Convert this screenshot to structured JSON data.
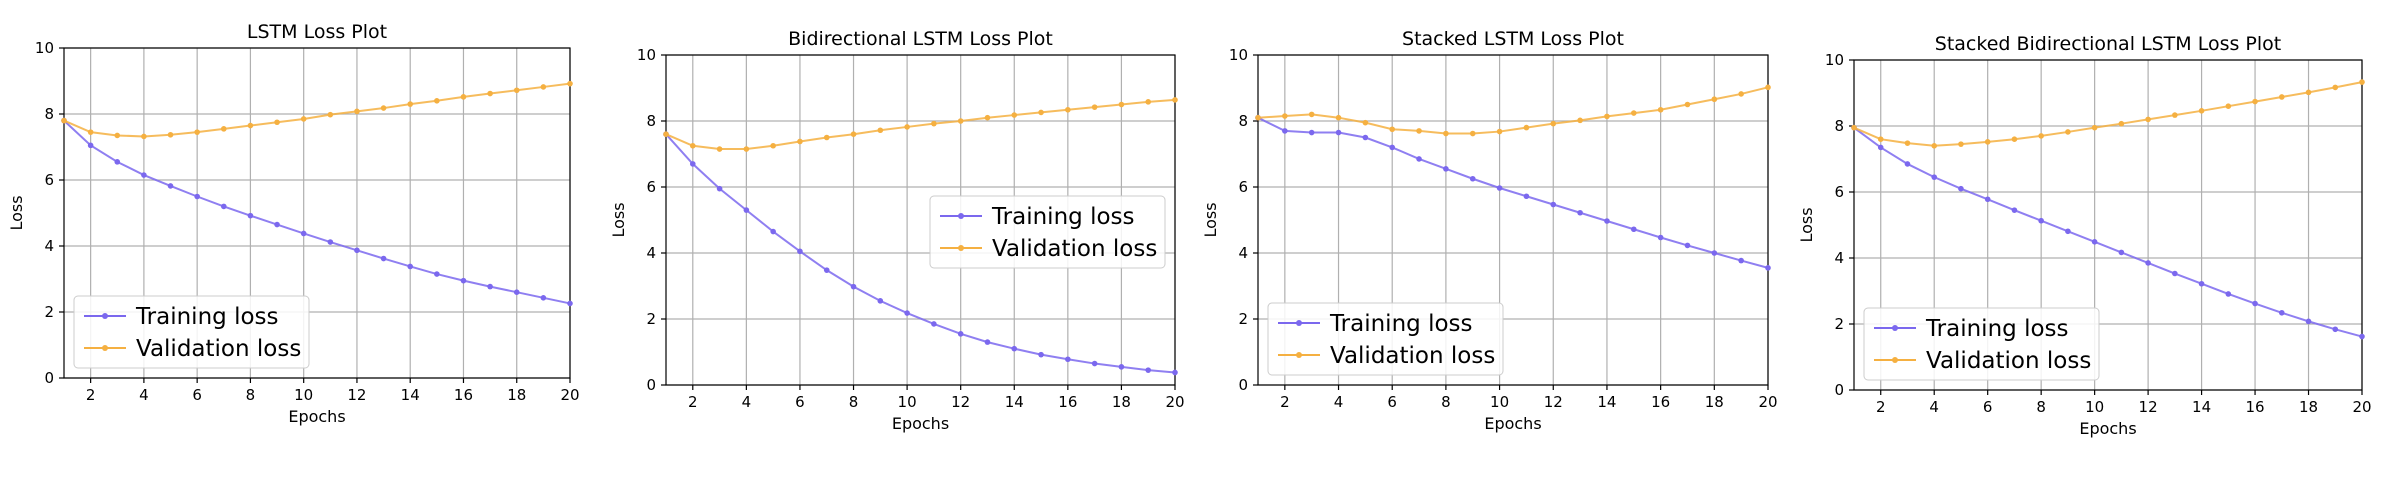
{
  "colors": {
    "training": "#7b68ee",
    "validation": "#f5b041"
  },
  "chart_data": [
    {
      "type": "line",
      "title": "LSTM Loss Plot",
      "xlabel": "Epochs",
      "ylabel": "Loss",
      "xlim": [
        1,
        20
      ],
      "ylim": [
        0,
        10
      ],
      "xticks": [
        2,
        4,
        6,
        8,
        10,
        12,
        14,
        16,
        18,
        20
      ],
      "yticks": [
        0,
        2,
        4,
        6,
        8,
        10
      ],
      "legend_position": "lower-left",
      "x": [
        1,
        2,
        3,
        4,
        5,
        6,
        7,
        8,
        9,
        10,
        11,
        12,
        13,
        14,
        15,
        16,
        17,
        18,
        19,
        20
      ],
      "series": [
        {
          "name": "Training loss",
          "color": "#7b68ee",
          "values": [
            7.8,
            7.05,
            6.55,
            6.15,
            5.82,
            5.5,
            5.2,
            4.92,
            4.65,
            4.38,
            4.12,
            3.87,
            3.62,
            3.38,
            3.15,
            2.95,
            2.77,
            2.6,
            2.43,
            2.26
          ]
        },
        {
          "name": "Validation loss",
          "color": "#f5b041",
          "values": [
            7.8,
            7.45,
            7.35,
            7.32,
            7.37,
            7.45,
            7.55,
            7.65,
            7.75,
            7.85,
            7.98,
            8.08,
            8.18,
            8.3,
            8.4,
            8.52,
            8.62,
            8.72,
            8.82,
            8.92
          ]
        }
      ]
    },
    {
      "type": "line",
      "title": "Bidirectional LSTM Loss Plot",
      "xlabel": "Epochs",
      "ylabel": "Loss",
      "xlim": [
        1,
        20
      ],
      "ylim": [
        0,
        10
      ],
      "xticks": [
        2,
        4,
        6,
        8,
        10,
        12,
        14,
        16,
        18,
        20
      ],
      "yticks": [
        0,
        2,
        4,
        6,
        8,
        10
      ],
      "legend_position": "center-right",
      "x": [
        1,
        2,
        3,
        4,
        5,
        6,
        7,
        8,
        9,
        10,
        11,
        12,
        13,
        14,
        15,
        16,
        17,
        18,
        19,
        20
      ],
      "series": [
        {
          "name": "Training loss",
          "color": "#7b68ee",
          "values": [
            7.6,
            6.7,
            5.95,
            5.3,
            4.65,
            4.05,
            3.48,
            2.98,
            2.55,
            2.18,
            1.85,
            1.55,
            1.3,
            1.1,
            0.92,
            0.78,
            0.65,
            0.55,
            0.45,
            0.38
          ]
        },
        {
          "name": "Validation loss",
          "color": "#f5b041",
          "values": [
            7.6,
            7.25,
            7.15,
            7.15,
            7.25,
            7.38,
            7.5,
            7.6,
            7.72,
            7.82,
            7.92,
            8.0,
            8.1,
            8.18,
            8.26,
            8.34,
            8.42,
            8.5,
            8.58,
            8.64
          ]
        }
      ]
    },
    {
      "type": "line",
      "title": "Stacked LSTM Loss Plot",
      "xlabel": "Epochs",
      "ylabel": "Loss",
      "xlim": [
        1,
        20
      ],
      "ylim": [
        0,
        10
      ],
      "xticks": [
        2,
        4,
        6,
        8,
        10,
        12,
        14,
        16,
        18,
        20
      ],
      "yticks": [
        0,
        2,
        4,
        6,
        8,
        10
      ],
      "legend_position": "lower-left",
      "x": [
        1,
        2,
        3,
        4,
        5,
        6,
        7,
        8,
        9,
        10,
        11,
        12,
        13,
        14,
        15,
        16,
        17,
        18,
        19,
        20
      ],
      "series": [
        {
          "name": "Training loss",
          "color": "#7b68ee",
          "values": [
            8.1,
            7.7,
            7.65,
            7.65,
            7.5,
            7.2,
            6.85,
            6.55,
            6.25,
            5.97,
            5.72,
            5.47,
            5.22,
            4.97,
            4.72,
            4.47,
            4.23,
            4.0,
            3.77,
            3.55
          ]
        },
        {
          "name": "Validation loss",
          "color": "#f5b041",
          "values": [
            8.1,
            8.15,
            8.2,
            8.1,
            7.95,
            7.75,
            7.7,
            7.62,
            7.62,
            7.68,
            7.8,
            7.92,
            8.02,
            8.14,
            8.24,
            8.34,
            8.5,
            8.66,
            8.82,
            9.02
          ]
        }
      ]
    },
    {
      "type": "line",
      "title": "Stacked Bidirectional LSTM Loss Plot",
      "xlabel": "Epochs",
      "ylabel": "Loss",
      "xlim": [
        1,
        20
      ],
      "ylim": [
        0,
        10
      ],
      "xticks": [
        2,
        4,
        6,
        8,
        10,
        12,
        14,
        16,
        18,
        20
      ],
      "yticks": [
        0,
        2,
        4,
        6,
        8,
        10
      ],
      "legend_position": "lower-left",
      "x": [
        1,
        2,
        3,
        4,
        5,
        6,
        7,
        8,
        9,
        10,
        11,
        12,
        13,
        14,
        15,
        16,
        17,
        18,
        19,
        20
      ],
      "series": [
        {
          "name": "Training loss",
          "color": "#7b68ee",
          "values": [
            7.95,
            7.35,
            6.85,
            6.45,
            6.1,
            5.78,
            5.45,
            5.13,
            4.81,
            4.49,
            4.17,
            3.85,
            3.53,
            3.22,
            2.91,
            2.62,
            2.34,
            2.08,
            1.84,
            1.62
          ]
        },
        {
          "name": "Validation loss",
          "color": "#f5b041",
          "values": [
            7.95,
            7.6,
            7.48,
            7.4,
            7.45,
            7.52,
            7.6,
            7.7,
            7.82,
            7.95,
            8.07,
            8.2,
            8.33,
            8.46,
            8.6,
            8.74,
            8.88,
            9.02,
            9.17,
            9.33
          ]
        }
      ]
    }
  ]
}
